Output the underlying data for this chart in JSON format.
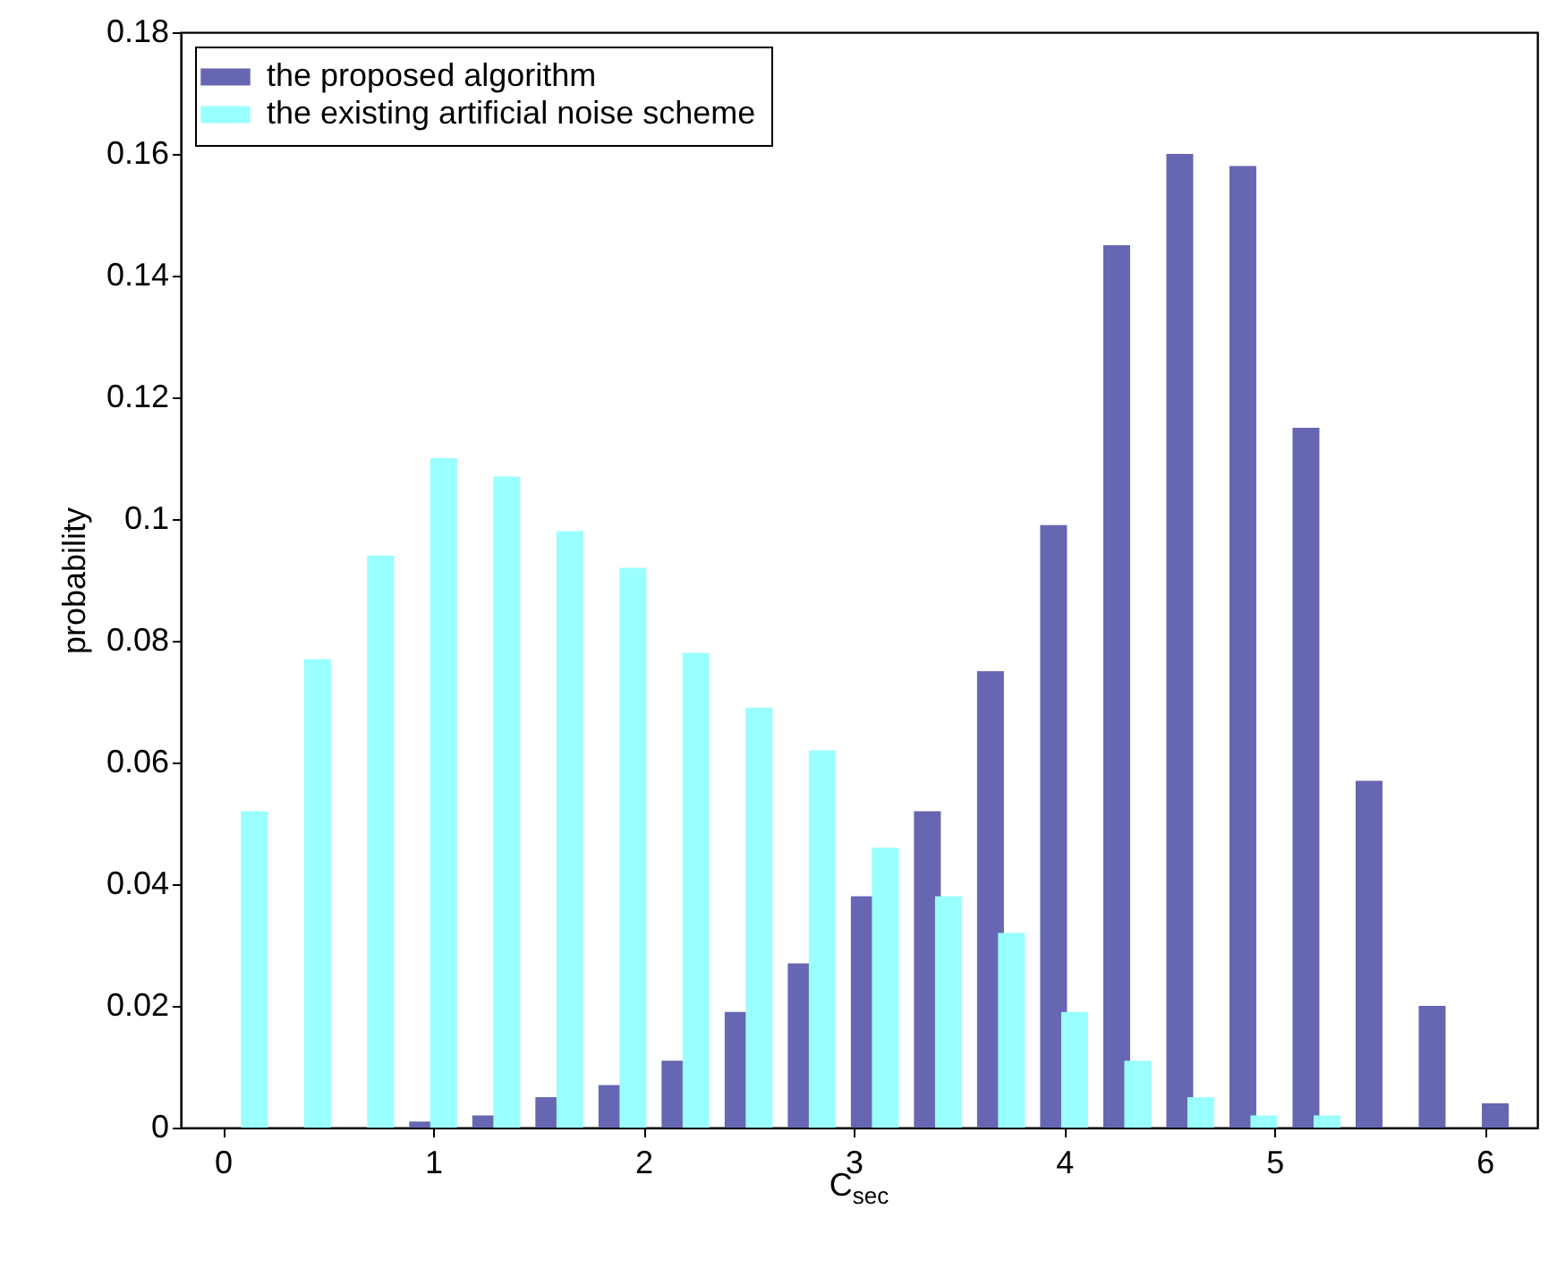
{
  "chart_data": {
    "type": "bar",
    "xlabel": "C$_{sec}$",
    "ylabel": "probability",
    "series": [
      {
        "name": "the proposed algorithm",
        "color": "#6666b3",
        "x": [
          0.95,
          1.25,
          1.55,
          1.85,
          2.15,
          2.45,
          2.75,
          3.05,
          3.35,
          3.65,
          3.95,
          4.25,
          4.55,
          4.85,
          5.15,
          5.45,
          5.75,
          6.05
        ],
        "values": [
          0.001,
          0.002,
          0.005,
          0.007,
          0.011,
          0.019,
          0.027,
          0.038,
          0.052,
          0.075,
          0.099,
          0.145,
          0.16,
          0.158,
          0.115,
          0.057,
          0.02,
          0.004
        ]
      },
      {
        "name": "the existing artificial noise scheme",
        "color": "#99ffff",
        "x": [
          0.15,
          0.45,
          0.75,
          1.05,
          1.35,
          1.65,
          1.95,
          2.25,
          2.55,
          2.85,
          3.15,
          3.45,
          3.75,
          4.05,
          4.35,
          4.65,
          4.95,
          5.25
        ],
        "values": [
          0.052,
          0.077,
          0.094,
          0.11,
          0.107,
          0.098,
          0.092,
          0.078,
          0.069,
          0.062,
          0.046,
          0.038,
          0.032,
          0.019,
          0.011,
          0.005,
          0.002,
          0.002
        ]
      }
    ],
    "xlim": [
      -0.2,
      6.25
    ],
    "xticks": [
      0,
      1,
      2,
      3,
      4,
      5,
      6
    ],
    "ylim": [
      0,
      0.18
    ],
    "yticks": [
      0,
      0.02,
      0.04,
      0.06,
      0.08,
      0.1,
      0.12,
      0.14,
      0.16,
      0.18
    ],
    "legend": "top left",
    "grid": false
  }
}
